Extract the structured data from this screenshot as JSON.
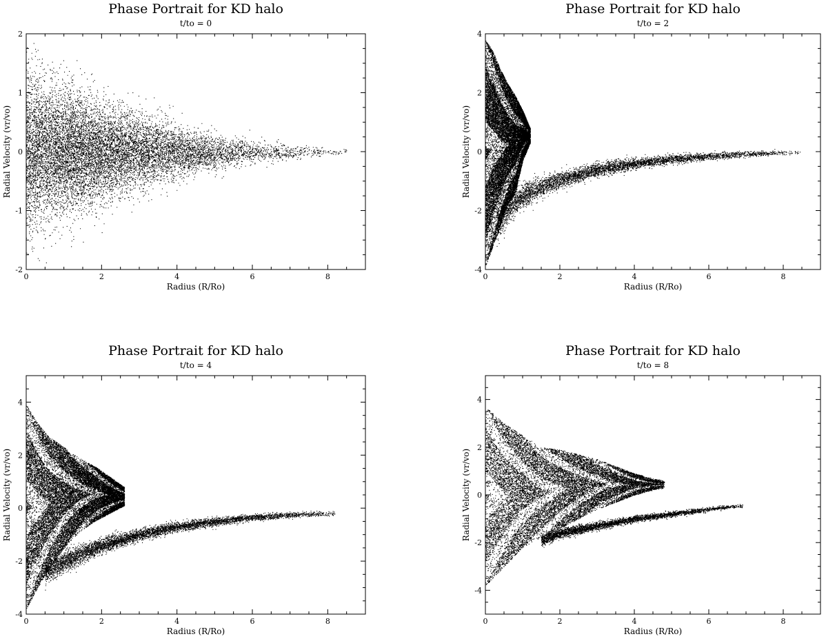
{
  "figure": {
    "background": "#ffffff",
    "ink": "#000000"
  },
  "chart_data": [
    {
      "type": "scatter",
      "title": "Phase Portrait for KD halo",
      "subtitle": "t/to = 0",
      "xlabel": "Radius (R/Ro)",
      "ylabel": "Radial Velocity (vr/vo)",
      "xlim": [
        0,
        9
      ],
      "ylim": [
        -2,
        2
      ],
      "xticks": [
        0,
        2,
        4,
        6,
        8
      ],
      "yticks": [
        -2,
        -1,
        0,
        1,
        2
      ],
      "grid": false,
      "series": [
        {
          "kind": "dispersed-cloud",
          "color": "#000000",
          "x": [
            0.0,
            0.5,
            1.0,
            1.5,
            2.0,
            2.5,
            3.0,
            3.5,
            4.0,
            4.5,
            5.0,
            5.5,
            6.0,
            6.5,
            7.0,
            7.5,
            8.0,
            8.5
          ],
          "y_center": [
            0.0,
            0.0,
            0.0,
            0.0,
            0.0,
            0.0,
            0.0,
            0.0,
            0.0,
            0.0,
            0.0,
            0.0,
            0.0,
            0.0,
            0.0,
            0.0,
            0.0,
            0.0
          ],
          "y_halfwidth": [
            1.2,
            1.05,
            0.95,
            0.85,
            0.75,
            0.65,
            0.55,
            0.48,
            0.4,
            0.33,
            0.27,
            0.22,
            0.18,
            0.14,
            0.11,
            0.08,
            0.06,
            0.04
          ],
          "density": [
            1.0,
            1.0,
            1.0,
            0.95,
            0.85,
            0.72,
            0.6,
            0.48,
            0.38,
            0.3,
            0.23,
            0.17,
            0.12,
            0.09,
            0.06,
            0.04,
            0.025,
            0.015
          ]
        }
      ]
    },
    {
      "type": "scatter",
      "title": "Phase Portrait for KD halo",
      "subtitle": "t/to = 2",
      "xlabel": "Radius (R/Ro)",
      "ylabel": "Radial Velocity (vr/vo)",
      "xlim": [
        0,
        9
      ],
      "ylim": [
        -4,
        4
      ],
      "xticks": [
        0,
        2,
        4,
        6,
        8
      ],
      "yticks": [
        -4,
        -2,
        0,
        2,
        4
      ],
      "grid": false,
      "series": [
        {
          "kind": "core-blob",
          "color": "#000000",
          "x": [
            0.0,
            0.2,
            0.4,
            0.6,
            0.8,
            1.0,
            1.2
          ],
          "y_top": [
            3.8,
            3.4,
            2.8,
            2.3,
            1.9,
            1.4,
            0.8
          ],
          "y_bottom": [
            -3.9,
            -3.2,
            -2.5,
            -1.8,
            -1.4,
            -0.3,
            0.3
          ],
          "density": [
            1.0,
            1.0,
            0.95,
            0.9,
            0.85,
            0.8,
            0.7
          ]
        },
        {
          "kind": "stream",
          "color": "#000000",
          "x": [
            0.3,
            0.7,
            1.0,
            1.5,
            2.0,
            3.0,
            4.0,
            5.0,
            6.0,
            7.0,
            7.5,
            8.0,
            8.5
          ],
          "y_center": [
            -2.5,
            -1.8,
            -1.5,
            -1.2,
            -0.95,
            -0.6,
            -0.4,
            -0.25,
            -0.15,
            -0.08,
            -0.05,
            -0.03,
            -0.02
          ],
          "y_halfwidth": [
            0.5,
            0.4,
            0.35,
            0.3,
            0.25,
            0.2,
            0.17,
            0.14,
            0.11,
            0.09,
            0.08,
            0.06,
            0.05
          ],
          "density": [
            1.0,
            1.0,
            0.95,
            0.9,
            0.85,
            0.75,
            0.65,
            0.5,
            0.38,
            0.25,
            0.18,
            0.1,
            0.05
          ]
        }
      ]
    },
    {
      "type": "scatter",
      "title": "Phase Portrait for KD halo",
      "subtitle": "t/to = 4",
      "xlabel": "Radius (R/Ro)",
      "ylabel": "Radial Velocity (vr/vo)",
      "xlim": [
        0,
        9
      ],
      "ylim": [
        -4,
        5
      ],
      "xticks": [
        0,
        2,
        4,
        6,
        8
      ],
      "yticks": [
        -4,
        -2,
        0,
        2,
        4
      ],
      "grid": false,
      "series": [
        {
          "kind": "core-blob",
          "color": "#000000",
          "x": [
            0.0,
            0.3,
            0.6,
            1.0,
            1.4,
            1.8,
            2.2,
            2.6
          ],
          "y_top": [
            3.9,
            3.2,
            2.7,
            2.3,
            1.9,
            1.6,
            1.2,
            0.8
          ],
          "y_bottom": [
            -3.8,
            -3.0,
            -2.3,
            -1.5,
            -0.9,
            -0.5,
            -0.2,
            0.1
          ],
          "density": [
            1.0,
            1.0,
            0.95,
            0.9,
            0.85,
            0.85,
            0.8,
            0.6
          ]
        },
        {
          "kind": "stream",
          "color": "#000000",
          "x": [
            0.5,
            1.0,
            1.5,
            2.0,
            3.0,
            4.0,
            5.0,
            6.0,
            7.0,
            7.5,
            8.0,
            8.2
          ],
          "y_center": [
            -2.4,
            -2.0,
            -1.7,
            -1.4,
            -1.0,
            -0.7,
            -0.5,
            -0.35,
            -0.25,
            -0.22,
            -0.2,
            -0.2
          ],
          "y_halfwidth": [
            0.4,
            0.35,
            0.3,
            0.25,
            0.2,
            0.17,
            0.14,
            0.11,
            0.09,
            0.08,
            0.07,
            0.06
          ],
          "density": [
            1.0,
            1.0,
            0.95,
            0.9,
            0.8,
            0.7,
            0.55,
            0.4,
            0.28,
            0.2,
            0.12,
            0.08
          ]
        }
      ]
    },
    {
      "type": "scatter",
      "title": "Phase Portrait for KD halo",
      "subtitle": "t/to = 8",
      "xlabel": "Radius (R/Ro)",
      "ylabel": "Radial Velocity (vr/vo)",
      "xlim": [
        0,
        9
      ],
      "ylim": [
        -5,
        5
      ],
      "xticks": [
        0,
        2,
        4,
        6,
        8
      ],
      "yticks": [
        -4,
        -2,
        0,
        2,
        4
      ],
      "grid": false,
      "series": [
        {
          "kind": "core-blob",
          "color": "#000000",
          "x": [
            0.0,
            0.5,
            1.0,
            1.5,
            2.0,
            2.5,
            3.0,
            3.5,
            4.0,
            4.5,
            4.8
          ],
          "y_top": [
            3.7,
            3.0,
            2.5,
            2.0,
            1.9,
            1.7,
            1.5,
            1.2,
            0.9,
            0.7,
            0.6
          ],
          "y_bottom": [
            -3.8,
            -3.0,
            -2.2,
            -1.8,
            -1.4,
            -1.0,
            -0.6,
            -0.3,
            0.0,
            0.2,
            0.3
          ],
          "density": [
            1.0,
            0.95,
            0.9,
            0.85,
            0.8,
            0.75,
            0.7,
            0.65,
            0.55,
            0.4,
            0.25
          ]
        },
        {
          "kind": "stream",
          "color": "#000000",
          "x": [
            1.5,
            2.0,
            3.0,
            4.0,
            5.0,
            6.0,
            6.5,
            6.9
          ],
          "y_center": [
            -1.9,
            -1.6,
            -1.3,
            -1.0,
            -0.8,
            -0.6,
            -0.5,
            -0.45
          ],
          "y_halfwidth": [
            0.2,
            0.18,
            0.15,
            0.12,
            0.1,
            0.08,
            0.07,
            0.06
          ],
          "density": [
            0.7,
            0.65,
            0.55,
            0.45,
            0.35,
            0.22,
            0.14,
            0.08
          ]
        }
      ]
    }
  ]
}
